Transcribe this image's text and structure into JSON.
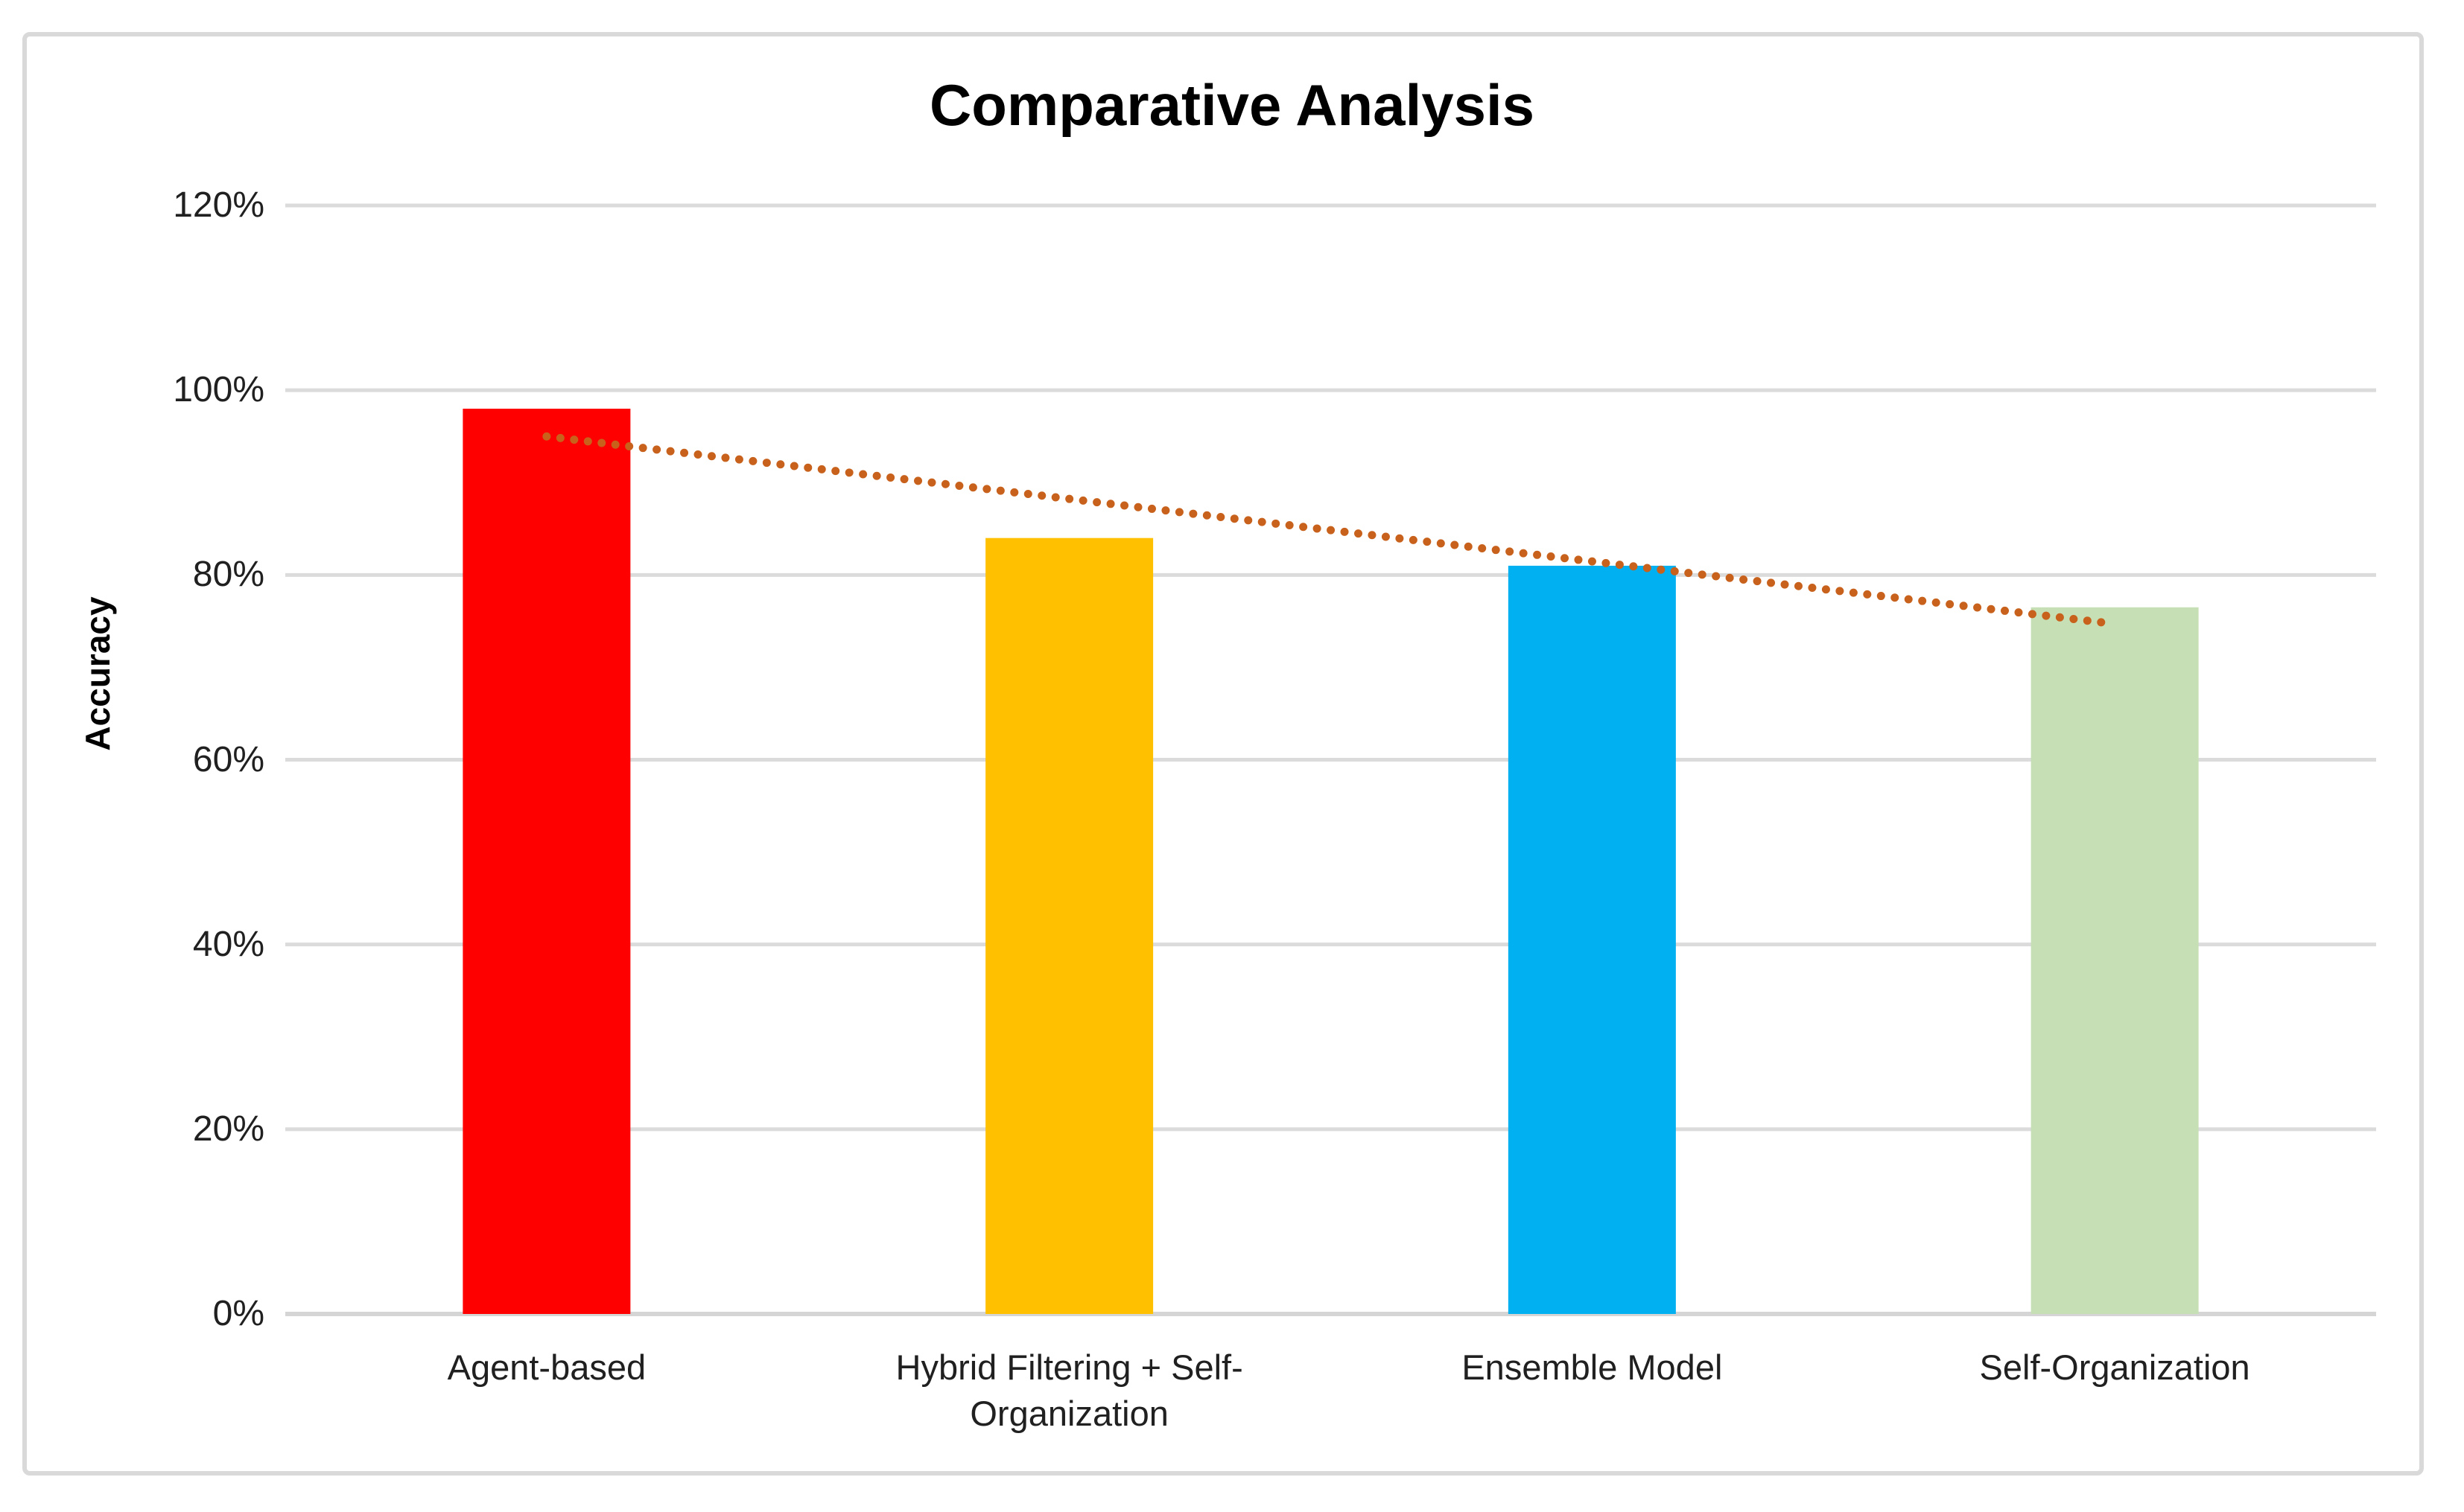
{
  "chart": {
    "title": "Comparative Analysis",
    "y_axis_title": "Accuracy"
  },
  "chart_data": {
    "type": "bar",
    "title": "Comparative Analysis",
    "xlabel": "",
    "ylabel": "Accuracy",
    "categories": [
      "Agent-based",
      "Hybrid Filtering + Self-Organization",
      "Ensemble Model",
      "Self-Organization"
    ],
    "series": [
      {
        "name": "Accuracy",
        "values": [
          0.98,
          0.84,
          0.81,
          0.765
        ]
      }
    ],
    "value_format": "percent",
    "bar_colors": [
      "#FF0000",
      "#FFC000",
      "#00B0F0",
      "#C6DFB5"
    ],
    "ylim": [
      0,
      1.2
    ],
    "yticks": [
      0,
      0.2,
      0.4,
      0.6,
      0.8,
      1.0,
      1.2
    ],
    "ytick_labels": [
      "0%",
      "20%",
      "40%",
      "60%",
      "80%",
      "100%",
      "120%"
    ],
    "grid": "horizontal",
    "gridline_color": "#DBDBDB",
    "axis_line_color": "#D5D5D5",
    "text_color": "#202020",
    "legend_position": "none",
    "trendline": {
      "kind": "linear",
      "style": "dotted",
      "color": "#C8611B",
      "start_value": 0.95,
      "end_value": 0.747
    }
  }
}
